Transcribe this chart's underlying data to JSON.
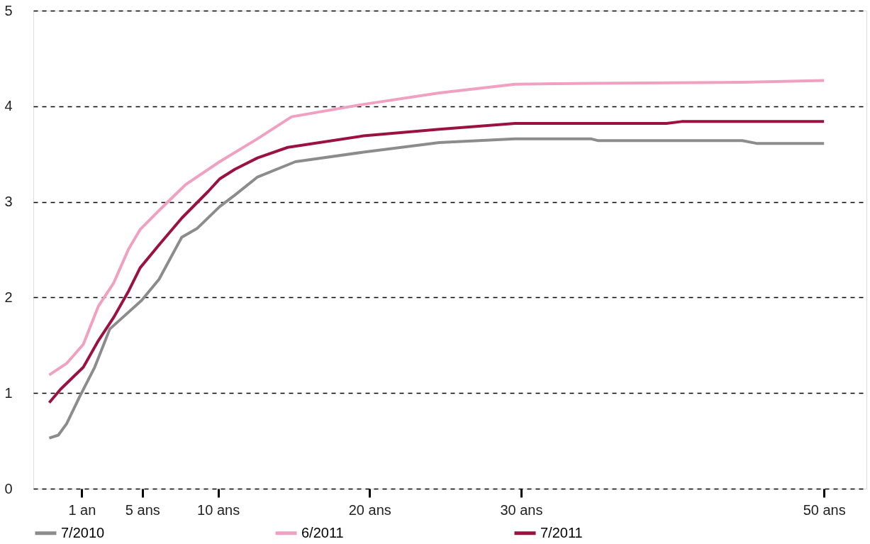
{
  "chart_data": {
    "type": "line",
    "xlim": [
      -2.2,
      52.8
    ],
    "xticks": [
      {
        "value": 1,
        "label": "1 an"
      },
      {
        "value": 5,
        "label": "5 ans"
      },
      {
        "value": 10,
        "label": "10 ans"
      },
      {
        "value": 20,
        "label": "20 ans"
      },
      {
        "value": 30,
        "label": "30 ans"
      },
      {
        "value": 50,
        "label": "50 ans"
      }
    ],
    "ylim": [
      0,
      5
    ],
    "yticks": [
      0,
      1,
      2,
      3,
      4,
      5
    ],
    "grid": "y",
    "legend": "bottom",
    "series": [
      {
        "name": "7/2010",
        "color": "#8c8c8c",
        "x": [
          -1.15,
          -0.55,
          0,
          0.85,
          1.85,
          2.85,
          4.95,
          6.1,
          7.6,
          8.6,
          10.1,
          11.1,
          12.6,
          15.1,
          19.6,
          24.6,
          29.6,
          34.6,
          35.1,
          44.6,
          45.6,
          50
        ],
        "values": [
          0.53,
          0.56,
          0.68,
          0.96,
          1.27,
          1.67,
          1.97,
          2.19,
          2.63,
          2.72,
          2.95,
          3.07,
          3.26,
          3.42,
          3.52,
          3.62,
          3.66,
          3.66,
          3.64,
          3.64,
          3.61,
          3.61
        ]
      },
      {
        "name": "6/2011",
        "color": "#f0a0c0",
        "x": [
          -1.15,
          0,
          1.1,
          2.1,
          3.1,
          4.1,
          4.85,
          6.1,
          7.85,
          10.1,
          12.6,
          14.85,
          19.6,
          24.6,
          29.6,
          34.6,
          44.6,
          50
        ],
        "values": [
          1.19,
          1.31,
          1.51,
          1.91,
          2.15,
          2.51,
          2.71,
          2.91,
          3.18,
          3.42,
          3.66,
          3.89,
          4.02,
          4.14,
          4.23,
          4.24,
          4.25,
          4.27
        ]
      },
      {
        "name": "7/2011",
        "color": "#9b1240",
        "x": [
          -1.15,
          -0.4,
          1.1,
          2.1,
          3.1,
          4.1,
          4.85,
          6.1,
          7.6,
          9.35,
          10.1,
          11.1,
          12.6,
          14.6,
          19.6,
          24.6,
          29.6,
          39.6,
          40.6,
          50
        ],
        "values": [
          0.9,
          1.04,
          1.27,
          1.55,
          1.79,
          2.07,
          2.31,
          2.55,
          2.83,
          3.11,
          3.24,
          3.34,
          3.46,
          3.57,
          3.69,
          3.76,
          3.82,
          3.82,
          3.84,
          3.84
        ]
      }
    ]
  }
}
